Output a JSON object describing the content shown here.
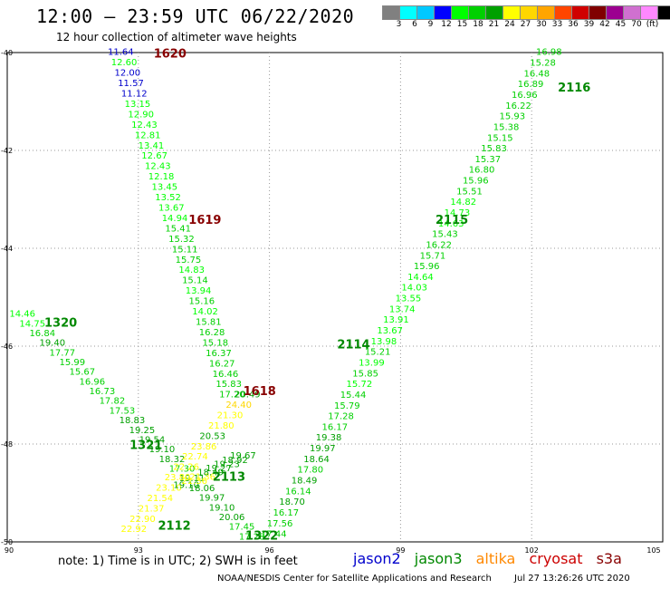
{
  "title": "12:00 – 23:59 UTC 06/22/2020",
  "subtitle": "12 hour collection of altimeter wave heights",
  "colorbar": {
    "colors": [
      "#808080",
      "#00ffff",
      "#00c8ff",
      "#0000ff",
      "#00ff00",
      "#00d000",
      "#00a000",
      "#ffff00",
      "#ffd700",
      "#ffa500",
      "#ff4500",
      "#d00000",
      "#800000",
      "#9c0090",
      "#d070d0",
      "#ff88ff",
      "#000000"
    ],
    "labels": [
      "3",
      "6",
      "9",
      "12",
      "15",
      "18",
      "21",
      "24",
      "27",
      "30",
      "33",
      "36",
      "39",
      "42",
      "45",
      "70",
      "(ft)"
    ]
  },
  "axes": {
    "x_ticks": [
      "90",
      "93",
      "96",
      "99",
      "102",
      "105"
    ],
    "y_ticks": [
      "-40",
      "-42",
      "-44",
      "-46",
      "-48",
      "-50"
    ]
  },
  "note": "note: 1) Time is in UTC; 2) SWH is in feet",
  "legend": [
    {
      "name": "jason2",
      "color": "#0000cc"
    },
    {
      "name": "jason3",
      "color": "#008800"
    },
    {
      "name": "altika",
      "color": "#ff8800"
    },
    {
      "name": "cryosat",
      "color": "#cc0000"
    },
    {
      "name": "s3a",
      "color": "#880000"
    }
  ],
  "footer": {
    "org": "NOAA/NESDIS Center for Satellite Applications and Research",
    "timestamp": "Jul 27 13:26:26 UTC 2020"
  },
  "chart_data": {
    "type": "scatter",
    "xlim": [
      90,
      105
    ],
    "ylim": [
      -50,
      -40
    ],
    "grid": true,
    "hour_labels": [
      {
        "text": "1620",
        "x": 93.35,
        "y": -40.1,
        "color": "#880000"
      },
      {
        "text": "1619",
        "x": 94.15,
        "y": -43.5,
        "color": "#880000"
      },
      {
        "text": "1618",
        "x": 95.4,
        "y": -47.0,
        "color": "#880000"
      },
      {
        "text": "1320",
        "x": 90.85,
        "y": -45.6,
        "color": "#008800"
      },
      {
        "text": "1321",
        "x": 92.8,
        "y": -48.1,
        "color": "#008800"
      },
      {
        "text": "1322",
        "x": 95.45,
        "y": -49.95,
        "color": "#008800"
      },
      {
        "text": "2112",
        "x": 93.45,
        "y": -49.75,
        "color": "#008800"
      },
      {
        "text": "2113",
        "x": 94.7,
        "y": -48.75,
        "color": "#008800"
      },
      {
        "text": "2114",
        "x": 97.55,
        "y": -46.05,
        "color": "#008800"
      },
      {
        "text": "2115",
        "x": 99.8,
        "y": -43.5,
        "color": "#008800"
      },
      {
        "text": "2116",
        "x": 102.6,
        "y": -40.8,
        "color": "#008800"
      }
    ],
    "tracks": [
      {
        "name": "1620-track",
        "start": [
          92.3,
          -40.05
        ],
        "end": [
          94.85,
          -47.05
        ],
        "values": [
          "11.64",
          "12.60",
          "12.00",
          "11.57",
          "11.12",
          "13.15",
          "12.90",
          "12.43",
          "12.81",
          "13.41",
          "12.67",
          "12.43",
          "12.18",
          "13.45",
          "13.52",
          "13.67",
          "14.94",
          "15.41",
          "15.32",
          "15.11",
          "15.75",
          "14.83",
          "15.14",
          "13.94",
          "15.16",
          "14.02",
          "15.81",
          "16.28",
          "15.18",
          "16.37",
          "16.27",
          "16.46",
          "15.83",
          "17.20"
        ],
        "colors": [
          "#0000cc",
          "#00ff00",
          "#0000cc",
          "#0000cc",
          "#0000cc",
          "#00ff00",
          "#00ff00",
          "#00ff00",
          "#00ff00",
          "#00ff00",
          "#00ff00",
          "#00ff00",
          "#00ff00",
          "#00ff00",
          "#00ff00",
          "#00ff00",
          "#00ff00",
          "#00d000",
          "#00d000",
          "#00d000",
          "#00d000",
          "#00ff00",
          "#00d000",
          "#00ff00",
          "#00d000",
          "#00ff00",
          "#00d000",
          "#00d000",
          "#00d000",
          "#00d000",
          "#00d000",
          "#00d000",
          "#00d000",
          "#00d000"
        ]
      },
      {
        "name": "1320-track",
        "start": [
          90.05,
          -45.4
        ],
        "end": [
          95.3,
          -49.95
        ],
        "values": [
          "14.46",
          "14.75",
          "16.84",
          "19.40",
          "17.77",
          "15.99",
          "15.67",
          "16.96",
          "16.73",
          "17.82",
          "17.53",
          "18.83",
          "19.25",
          "19.54",
          "19.10",
          "18.32",
          "17.30",
          "19.11",
          "18.06",
          "19.97",
          "19.10",
          "20.06",
          "17.45",
          "17.28"
        ],
        "colors": [
          "#00ff00",
          "#00ff00",
          "#00d000",
          "#00a000",
          "#00d000",
          "#00d000",
          "#00d000",
          "#00d000",
          "#00d000",
          "#00d000",
          "#00d000",
          "#00a000",
          "#00a000",
          "#00a000",
          "#00a000",
          "#00a000",
          "#00d000",
          "#00a000",
          "#00a000",
          "#00a000",
          "#00a000",
          "#00a000",
          "#00d000",
          "#00d000"
        ]
      },
      {
        "name": "2112-track",
        "start": [
          92.6,
          -49.8
        ],
        "end": [
          95.2,
          -47.05
        ],
        "values": [
          "22.92",
          "22.90",
          "21.37",
          "21.54",
          "23.10",
          "23.80",
          "22.26",
          "22.74",
          "23.86",
          "20.53",
          "21.80",
          "21.30",
          "24.40",
          "20.49"
        ],
        "colors": [
          "#ffff00",
          "#ffff00",
          "#ffff00",
          "#ffff00",
          "#ffff00",
          "#ffff00",
          "#ffff00",
          "#ffff00",
          "#ffff00",
          "#00a000",
          "#ffff00",
          "#ffff00",
          "#ffd700",
          "#00a000"
        ]
      },
      {
        "name": "2112-inner",
        "start": [
          93.8,
          -48.9
        ],
        "end": [
          95.1,
          -48.3
        ],
        "values": [
          "19.10",
          "21.36",
          "21.36",
          "18.49",
          "19.27",
          "19.23",
          "18.92",
          "19.67"
        ],
        "colors": [
          "#00a000",
          "#ffff00",
          "#ffff00",
          "#00a000",
          "#00a000",
          "#00a000",
          "#00a000",
          "#00a000"
        ]
      },
      {
        "name": "2116-track",
        "start": [
          95.8,
          -49.9
        ],
        "end": [
          102.1,
          -40.05
        ],
        "values": [
          "17.44",
          "17.56",
          "16.17",
          "18.70",
          "16.14",
          "18.49",
          "17.80",
          "18.64",
          "19.97",
          "19.38",
          "16.17",
          "17.28",
          "15.79",
          "15.44",
          "15.72",
          "15.85",
          "13.99",
          "15.21",
          "13.98",
          "13.67",
          "13.91",
          "13.74",
          "13.55",
          "14.03",
          "14.64",
          "15.96",
          "15.71",
          "16.22",
          "15.43",
          "14.63",
          "14.73",
          "14.82",
          "15.51",
          "15.96",
          "16.80",
          "15.37",
          "15.83",
          "15.15",
          "15.38",
          "15.93",
          "16.22",
          "16.96",
          "16.89",
          "16.48",
          "15.28",
          "16.98"
        ],
        "colors": [
          "#00d000",
          "#00d000",
          "#00d000",
          "#00a000",
          "#00d000",
          "#00a000",
          "#00d000",
          "#00a000",
          "#00a000",
          "#00a000",
          "#00d000",
          "#00d000",
          "#00d000",
          "#00d000",
          "#00ff00",
          "#00d000",
          "#00ff00",
          "#00d000",
          "#00ff00",
          "#00ff00",
          "#00ff00",
          "#00ff00",
          "#00ff00",
          "#00ff00",
          "#00ff00",
          "#00d000",
          "#00d000",
          "#00d000",
          "#00d000",
          "#00ff00",
          "#00ff00",
          "#00ff00",
          "#00d000",
          "#00d000",
          "#00d000",
          "#00d000",
          "#00d000",
          "#00d000",
          "#00d000",
          "#00d000",
          "#00d000",
          "#00d000",
          "#00d000",
          "#00d000",
          "#00d000",
          "#00d000"
        ]
      }
    ]
  }
}
